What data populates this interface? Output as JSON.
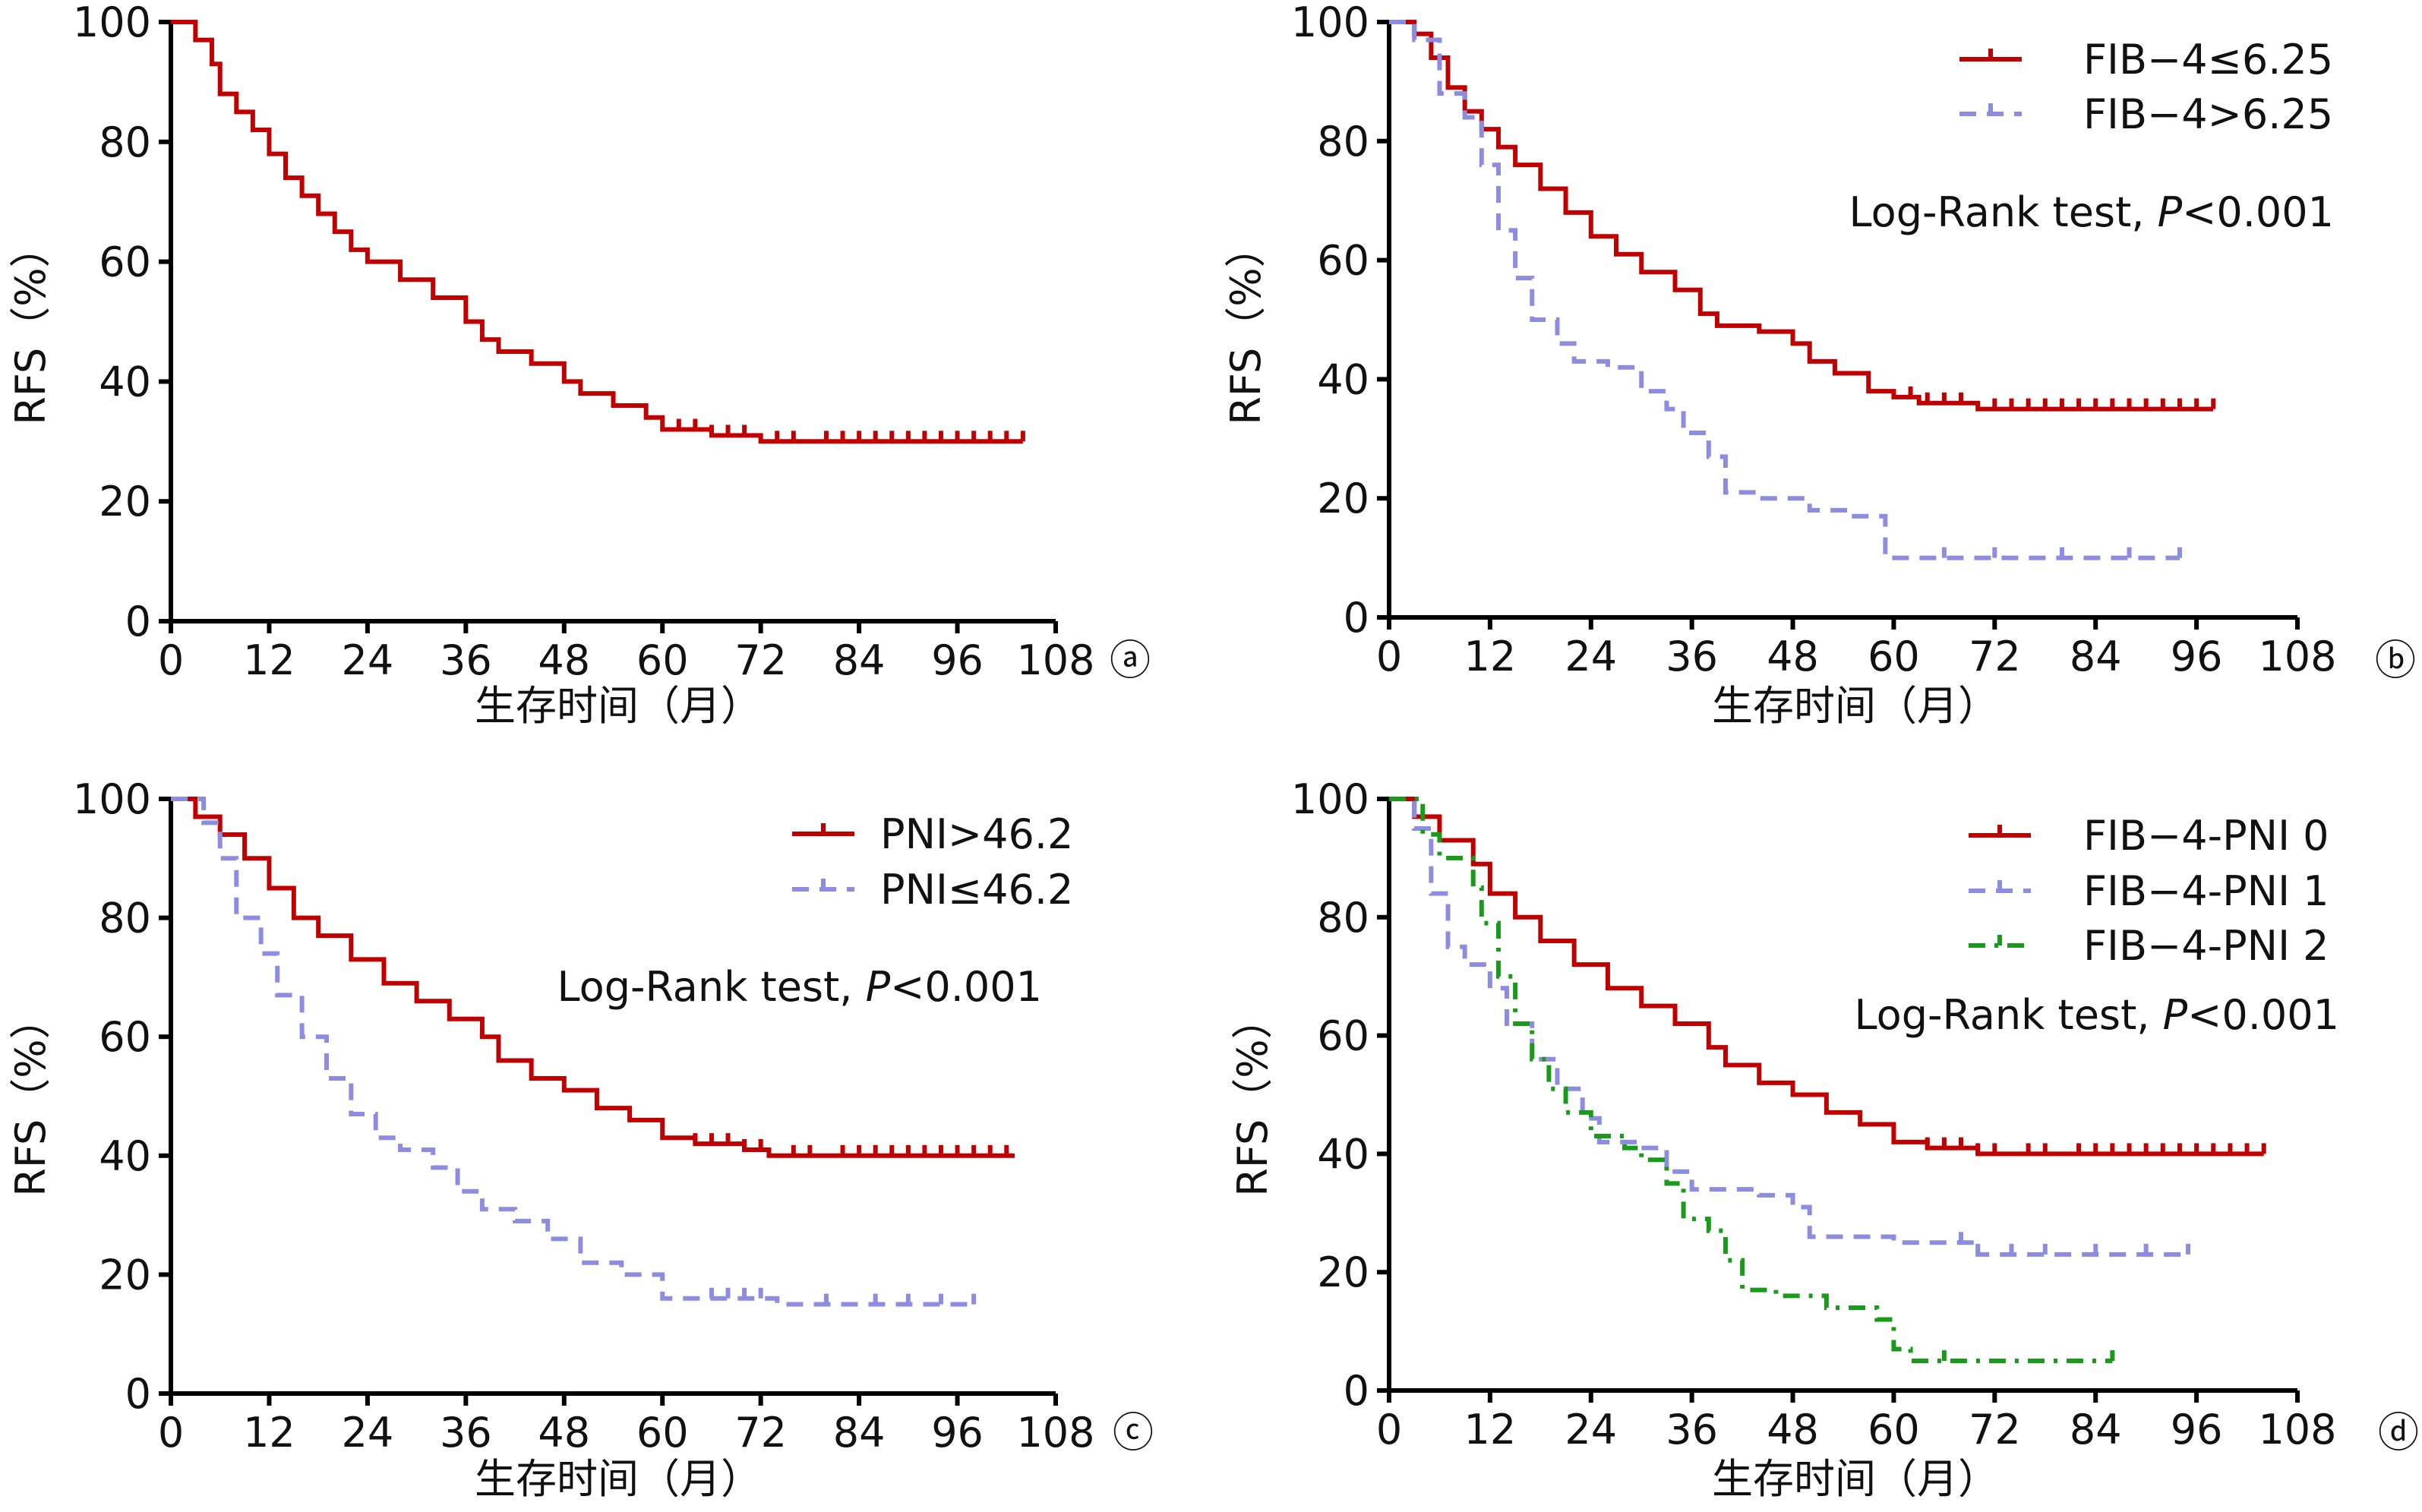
{
  "chart_data": [
    {
      "type": "line",
      "panel_label": "ⓐ",
      "xlabel": "生存时间（月）",
      "ylabel": "RFS（%）",
      "xlim": [
        0,
        108
      ],
      "ylim": [
        0,
        100
      ],
      "xticks": [
        0,
        12,
        24,
        36,
        48,
        60,
        72,
        84,
        96,
        108
      ],
      "yticks": [
        0,
        20,
        40,
        60,
        80,
        100
      ],
      "grid": false,
      "annotation": "",
      "series": [
        {
          "color": "#c00000",
          "dash": "solid",
          "points": [
            [
              0,
              100
            ],
            [
              3,
              97
            ],
            [
              5,
              93
            ],
            [
              6,
              88
            ],
            [
              8,
              85
            ],
            [
              10,
              82
            ],
            [
              12,
              78
            ],
            [
              14,
              74
            ],
            [
              16,
              71
            ],
            [
              18,
              68
            ],
            [
              20,
              65
            ],
            [
              22,
              62
            ],
            [
              24,
              60
            ],
            [
              28,
              57
            ],
            [
              32,
              54
            ],
            [
              36,
              50
            ],
            [
              38,
              47
            ],
            [
              40,
              45
            ],
            [
              44,
              43
            ],
            [
              48,
              40
            ],
            [
              50,
              38
            ],
            [
              54,
              36
            ],
            [
              58,
              34
            ],
            [
              60,
              32
            ],
            [
              66,
              31
            ],
            [
              72,
              30
            ],
            [
              104,
              30
            ]
          ],
          "censored": [
            62,
            64,
            66,
            68,
            70,
            74,
            76,
            80,
            82,
            84,
            86,
            88,
            90,
            92,
            94,
            96,
            98,
            100,
            102,
            104
          ]
        }
      ]
    },
    {
      "type": "line",
      "panel_label": "ⓑ",
      "xlabel": "生存时间（月）",
      "ylabel": "RFS（%）",
      "xlim": [
        0,
        108
      ],
      "ylim": [
        0,
        100
      ],
      "xticks": [
        0,
        12,
        24,
        36,
        48,
        60,
        72,
        84,
        96,
        108
      ],
      "yticks": [
        0,
        20,
        40,
        60,
        80,
        100
      ],
      "grid": false,
      "legend_position": "top-right",
      "annotation": "Log-Rank test, ",
      "annotation_p": "P",
      "annotation_value": "<0.001",
      "series": [
        {
          "name": "FIB−4≤6.25",
          "color": "#c00000",
          "dash": "solid",
          "points": [
            [
              0,
              100
            ],
            [
              3,
              98
            ],
            [
              5,
              94
            ],
            [
              7,
              89
            ],
            [
              9,
              85
            ],
            [
              11,
              82
            ],
            [
              13,
              79
            ],
            [
              15,
              76
            ],
            [
              18,
              72
            ],
            [
              21,
              68
            ],
            [
              24,
              64
            ],
            [
              27,
              61
            ],
            [
              30,
              58
            ],
            [
              34,
              55
            ],
            [
              37,
              51
            ],
            [
              39,
              49
            ],
            [
              44,
              48
            ],
            [
              48,
              46
            ],
            [
              50,
              43
            ],
            [
              53,
              41
            ],
            [
              57,
              38
            ],
            [
              60,
              37
            ],
            [
              63,
              36
            ],
            [
              70,
              35
            ],
            [
              98,
              35
            ]
          ],
          "censored": [
            62,
            64,
            66,
            68,
            72,
            74,
            76,
            78,
            80,
            82,
            84,
            86,
            88,
            90,
            92,
            94,
            96,
            98
          ]
        },
        {
          "name": "FIB−4>6.25",
          "color": "#8c8ce0",
          "dash": "dashed",
          "points": [
            [
              0,
              100
            ],
            [
              3,
              97
            ],
            [
              6,
              88
            ],
            [
              9,
              84
            ],
            [
              11,
              76
            ],
            [
              13,
              65
            ],
            [
              15,
              57
            ],
            [
              17,
              50
            ],
            [
              20,
              46
            ],
            [
              22,
              43
            ],
            [
              26,
              42
            ],
            [
              30,
              38
            ],
            [
              33,
              35
            ],
            [
              35,
              31
            ],
            [
              38,
              27
            ],
            [
              40,
              21
            ],
            [
              44,
              20
            ],
            [
              50,
              18
            ],
            [
              55,
              17
            ],
            [
              59,
              10
            ],
            [
              62,
              10
            ],
            [
              94,
              10
            ]
          ],
          "censored": [
            66,
            72,
            80,
            88,
            94
          ]
        }
      ]
    },
    {
      "type": "line",
      "panel_label": "ⓒ",
      "xlabel": "生存时间（月）",
      "ylabel": "RFS（%）",
      "xlim": [
        0,
        108
      ],
      "ylim": [
        0,
        100
      ],
      "xticks": [
        0,
        12,
        24,
        36,
        48,
        60,
        72,
        84,
        96,
        108
      ],
      "yticks": [
        0,
        20,
        40,
        60,
        80,
        100
      ],
      "grid": false,
      "legend_position": "top-right",
      "annotation": "Log-Rank test, ",
      "annotation_p": "P",
      "annotation_value": "<0.001",
      "series": [
        {
          "name": "PNI>46.2",
          "color": "#c00000",
          "dash": "solid",
          "points": [
            [
              0,
              100
            ],
            [
              3,
              97
            ],
            [
              6,
              94
            ],
            [
              9,
              90
            ],
            [
              12,
              85
            ],
            [
              15,
              80
            ],
            [
              18,
              77
            ],
            [
              22,
              73
            ],
            [
              26,
              69
            ],
            [
              30,
              66
            ],
            [
              34,
              63
            ],
            [
              38,
              60
            ],
            [
              40,
              56
            ],
            [
              44,
              53
            ],
            [
              48,
              51
            ],
            [
              52,
              48
            ],
            [
              56,
              46
            ],
            [
              60,
              43
            ],
            [
              64,
              42
            ],
            [
              70,
              41
            ],
            [
              73,
              40
            ],
            [
              103,
              40
            ]
          ],
          "censored": [
            64,
            66,
            68,
            70,
            72,
            76,
            78,
            82,
            84,
            86,
            88,
            90,
            92,
            94,
            96,
            98,
            100,
            102
          ]
        },
        {
          "name": "PNI≤46.2",
          "color": "#8c8ce0",
          "dash": "dashed",
          "points": [
            [
              0,
              100
            ],
            [
              4,
              96
            ],
            [
              6,
              90
            ],
            [
              8,
              80
            ],
            [
              11,
              74
            ],
            [
              13,
              67
            ],
            [
              16,
              60
            ],
            [
              19,
              53
            ],
            [
              22,
              47
            ],
            [
              25,
              43
            ],
            [
              28,
              41
            ],
            [
              32,
              38
            ],
            [
              35,
              34
            ],
            [
              38,
              31
            ],
            [
              42,
              29
            ],
            [
              46,
              26
            ],
            [
              50,
              22
            ],
            [
              55,
              20
            ],
            [
              60,
              16
            ],
            [
              72,
              16
            ],
            [
              74,
              15
            ],
            [
              98,
              15
            ]
          ],
          "censored": [
            66,
            68,
            70,
            72,
            80,
            86,
            90,
            94,
            98
          ]
        }
      ]
    },
    {
      "type": "line",
      "panel_label": "ⓓ",
      "xlabel": "生存时间（月）",
      "ylabel": "RFS（%）",
      "xlim": [
        0,
        108
      ],
      "ylim": [
        0,
        100
      ],
      "xticks": [
        0,
        12,
        24,
        36,
        48,
        60,
        72,
        84,
        96,
        108
      ],
      "yticks": [
        0,
        20,
        40,
        60,
        80,
        100
      ],
      "grid": false,
      "legend_position": "top-right",
      "annotation": "Log-Rank test, ",
      "annotation_p": "P",
      "annotation_value": "<0.001",
      "series": [
        {
          "name": "FIB−4-PNI 0",
          "color": "#c00000",
          "dash": "solid",
          "points": [
            [
              0,
              100
            ],
            [
              3,
              97
            ],
            [
              6,
              93
            ],
            [
              10,
              89
            ],
            [
              12,
              84
            ],
            [
              15,
              80
            ],
            [
              18,
              76
            ],
            [
              22,
              72
            ],
            [
              26,
              68
            ],
            [
              30,
              65
            ],
            [
              34,
              62
            ],
            [
              38,
              58
            ],
            [
              40,
              55
            ],
            [
              44,
              52
            ],
            [
              48,
              50
            ],
            [
              52,
              47
            ],
            [
              56,
              45
            ],
            [
              60,
              42
            ],
            [
              64,
              41
            ],
            [
              70,
              40
            ],
            [
              104,
              40
            ]
          ],
          "censored": [
            64,
            66,
            68,
            70,
            72,
            76,
            78,
            82,
            84,
            86,
            88,
            90,
            92,
            94,
            96,
            98,
            100,
            102,
            104
          ]
        },
        {
          "name": "FIB−4-PNI 1",
          "color": "#8c8ce0",
          "dash": "dashed",
          "points": [
            [
              0,
              100
            ],
            [
              3,
              95
            ],
            [
              5,
              84
            ],
            [
              7,
              75
            ],
            [
              9,
              72
            ],
            [
              12,
              68
            ],
            [
              14,
              62
            ],
            [
              17,
              56
            ],
            [
              20,
              51
            ],
            [
              23,
              46
            ],
            [
              25,
              42
            ],
            [
              30,
              41
            ],
            [
              33,
              37
            ],
            [
              36,
              34
            ],
            [
              44,
              33
            ],
            [
              48,
              31
            ],
            [
              50,
              26
            ],
            [
              60,
              25
            ],
            [
              70,
              23
            ],
            [
              95,
              23
            ]
          ],
          "censored": [
            68,
            70,
            74,
            78,
            84,
            90,
            95
          ]
        },
        {
          "name": "FIB−4-PNI 2",
          "color": "#1a9a1a",
          "dash": "dashdot",
          "points": [
            [
              0,
              100
            ],
            [
              4,
              94
            ],
            [
              6,
              90
            ],
            [
              10,
              85
            ],
            [
              11,
              79
            ],
            [
              13,
              70
            ],
            [
              15,
              62
            ],
            [
              17,
              56
            ],
            [
              19,
              51
            ],
            [
              21,
              47
            ],
            [
              24,
              43
            ],
            [
              28,
              41
            ],
            [
              30,
              39
            ],
            [
              33,
              35
            ],
            [
              35,
              29
            ],
            [
              38,
              27
            ],
            [
              40,
              22
            ],
            [
              42,
              17
            ],
            [
              46,
              16
            ],
            [
              52,
              14
            ],
            [
              58,
              12
            ],
            [
              60,
              7
            ],
            [
              62,
              5
            ],
            [
              86,
              5
            ]
          ],
          "censored": [
            66,
            86
          ]
        }
      ]
    }
  ]
}
